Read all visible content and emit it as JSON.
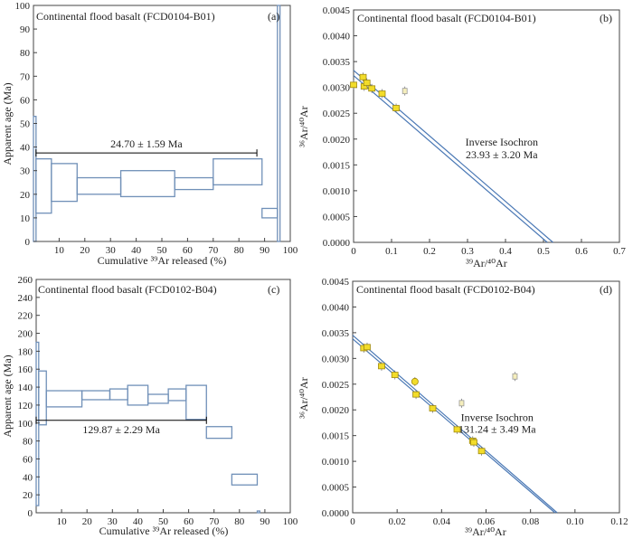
{
  "figure": {
    "background": "#ffffff"
  },
  "colors": {
    "box": "#7090b8",
    "plateau_line": "#000000",
    "fit_line": "#4a78b5",
    "point_fill": "#f2dc2a",
    "point_stroke": "#a08a10",
    "outlier_fill": "#f5eebc"
  },
  "chart_data": [
    {
      "id": "a",
      "type": "step-spectrum",
      "title": "Continental flood basalt (FCD0104-B01)",
      "panel_label": "(a)",
      "xlabel": "Cumulative ³⁹Ar released (%)",
      "ylabel": "Apparent age (Ma)",
      "xlim": [
        0,
        100
      ],
      "ylim": [
        0,
        100
      ],
      "xticks": [
        10,
        20,
        30,
        40,
        50,
        60,
        70,
        80,
        90,
        100
      ],
      "yticks": [
        0,
        10,
        20,
        30,
        40,
        50,
        60,
        70,
        80,
        90,
        100
      ],
      "steps": [
        {
          "x0": 0,
          "x1": 1,
          "ylo": 0,
          "yhi": 53
        },
        {
          "x0": 1,
          "x1": 7,
          "ylo": 12,
          "yhi": 35
        },
        {
          "x0": 7,
          "x1": 17,
          "ylo": 17,
          "yhi": 33
        },
        {
          "x0": 17,
          "x1": 34,
          "ylo": 20,
          "yhi": 27
        },
        {
          "x0": 34,
          "x1": 55,
          "ylo": 19,
          "yhi": 30
        },
        {
          "x0": 55,
          "x1": 70,
          "ylo": 22,
          "yhi": 27
        },
        {
          "x0": 70,
          "x1": 89,
          "ylo": 24,
          "yhi": 35
        },
        {
          "x0": 89,
          "x1": 95,
          "ylo": 10,
          "yhi": 14
        },
        {
          "x0": 95,
          "x1": 96,
          "ylo": 0,
          "yhi": 100
        }
      ],
      "plateau": {
        "x0": 1,
        "x1": 87,
        "y": 37.5,
        "label": "24.70 ± 1.59 Ma"
      }
    },
    {
      "id": "b",
      "type": "scatter",
      "title": "Continental flood basalt (FCD0104-B01)",
      "panel_label": "(b)",
      "xlabel": "³⁹Ar/⁴⁰Ar",
      "ylabel": "³⁶Ar/⁴⁰Ar",
      "xlim": [
        0,
        0.7
      ],
      "ylim": [
        0,
        0.0045
      ],
      "xticks": [
        "0",
        "0.1",
        "0.2",
        "0.3",
        "0.4",
        "0.5",
        "0.6",
        "0.7"
      ],
      "yticks": [
        "0.0000",
        "0.0005",
        "0.0010",
        "0.0015",
        "0.0020",
        "0.0025",
        "0.0030",
        "0.0035",
        "0.0040",
        "0.0045"
      ],
      "points": [
        {
          "x": 0.0,
          "y": 0.00305
        },
        {
          "x": 0.025,
          "y": 0.0032
        },
        {
          "x": 0.028,
          "y": 0.00302
        },
        {
          "x": 0.035,
          "y": 0.00309
        },
        {
          "x": 0.048,
          "y": 0.00298
        },
        {
          "x": 0.075,
          "y": 0.00288
        },
        {
          "x": 0.112,
          "y": 0.0026
        },
        {
          "x": 0.135,
          "y": 0.00293,
          "outlier": true
        }
      ],
      "fit_lines": [
        {
          "x0": 0,
          "y0": 0.00333,
          "x1": 0.525,
          "y1": 0
        },
        {
          "x0": 0,
          "y0": 0.00323,
          "x1": 0.51,
          "y1": 0
        }
      ],
      "annotation": {
        "line1": "Inverse Isochron",
        "line2": "23.93 ± 3.20 Ma",
        "x": 0.39,
        "y": 0.00187,
        "y2": 0.00163
      }
    },
    {
      "id": "c",
      "type": "step-spectrum",
      "title": "Continental flood basalt (FCD0102-B04)",
      "panel_label": "(c)",
      "xlabel": "Cumulative ³⁹Ar released (%)",
      "ylabel": "Apparent age (Ma)",
      "xlim": [
        0,
        100
      ],
      "ylim": [
        0,
        260
      ],
      "xticks": [
        10,
        20,
        30,
        40,
        50,
        60,
        70,
        80,
        90,
        100
      ],
      "yticks": [
        0,
        20,
        40,
        60,
        80,
        100,
        120,
        140,
        160,
        180,
        200,
        220,
        240,
        260
      ],
      "steps": [
        {
          "x0": 0,
          "x1": 1,
          "ylo": 8,
          "yhi": 190
        },
        {
          "x0": 1,
          "x1": 4,
          "ylo": 98,
          "yhi": 158
        },
        {
          "x0": 4,
          "x1": 18,
          "ylo": 118,
          "yhi": 136
        },
        {
          "x0": 18,
          "x1": 29,
          "ylo": 126,
          "yhi": 136
        },
        {
          "x0": 29,
          "x1": 36,
          "ylo": 126,
          "yhi": 138
        },
        {
          "x0": 36,
          "x1": 44,
          "ylo": 120,
          "yhi": 142
        },
        {
          "x0": 44,
          "x1": 52,
          "ylo": 122,
          "yhi": 132
        },
        {
          "x0": 52,
          "x1": 59,
          "ylo": 125,
          "yhi": 138
        },
        {
          "x0": 59,
          "x1": 67,
          "ylo": 104,
          "yhi": 142
        },
        {
          "x0": 67,
          "x1": 77,
          "ylo": 83,
          "yhi": 96
        },
        {
          "x0": 77,
          "x1": 87,
          "ylo": 31,
          "yhi": 43
        },
        {
          "x0": 87,
          "x1": 88,
          "ylo": 0,
          "yhi": 2
        }
      ],
      "plateau": {
        "x0": 0,
        "x1": 67,
        "y": 103,
        "label": "129.87 ± 2.29 Ma"
      }
    },
    {
      "id": "d",
      "type": "scatter",
      "title": "Continental flood basalt (FCD0102-B04)",
      "panel_label": "(d)",
      "xlabel": "³⁹Ar/⁴⁰Ar",
      "ylabel": "³⁶Ar/⁴⁰Ar",
      "xlim": [
        0,
        0.12
      ],
      "ylim": [
        0,
        0.0045
      ],
      "xticks": [
        "0",
        "0.02",
        "0.04",
        "0.06",
        "0.08",
        "0.10",
        "0.12"
      ],
      "yticks": [
        "0.0000",
        "0.0005",
        "0.0010",
        "0.0015",
        "0.0020",
        "0.0025",
        "0.0030",
        "0.0035",
        "0.0040",
        "0.0045"
      ],
      "points": [
        {
          "x": 0.005,
          "y": 0.0032
        },
        {
          "x": 0.0065,
          "y": 0.00322
        },
        {
          "x": 0.013,
          "y": 0.00285
        },
        {
          "x": 0.019,
          "y": 0.00268
        },
        {
          "x": 0.028,
          "y": 0.00255,
          "round": true
        },
        {
          "x": 0.0285,
          "y": 0.0023
        },
        {
          "x": 0.036,
          "y": 0.00203
        },
        {
          "x": 0.047,
          "y": 0.00162
        },
        {
          "x": 0.054,
          "y": 0.0014
        },
        {
          "x": 0.0545,
          "y": 0.00137
        },
        {
          "x": 0.058,
          "y": 0.0012
        },
        {
          "x": 0.049,
          "y": 0.00213,
          "outlier": true
        },
        {
          "x": 0.073,
          "y": 0.00265,
          "outlier": true
        }
      ],
      "fit_lines": [
        {
          "x0": 0,
          "y0": 0.00345,
          "x1": 0.092,
          "y1": 0
        },
        {
          "x0": 0,
          "y0": 0.00338,
          "x1": 0.091,
          "y1": 0
        }
      ],
      "annotation": {
        "line1": "Inverse Isochron",
        "line2": "131.24 ± 3.49 Ma",
        "x": 0.065,
        "y": 0.00178,
        "y2": 0.00156
      }
    }
  ]
}
